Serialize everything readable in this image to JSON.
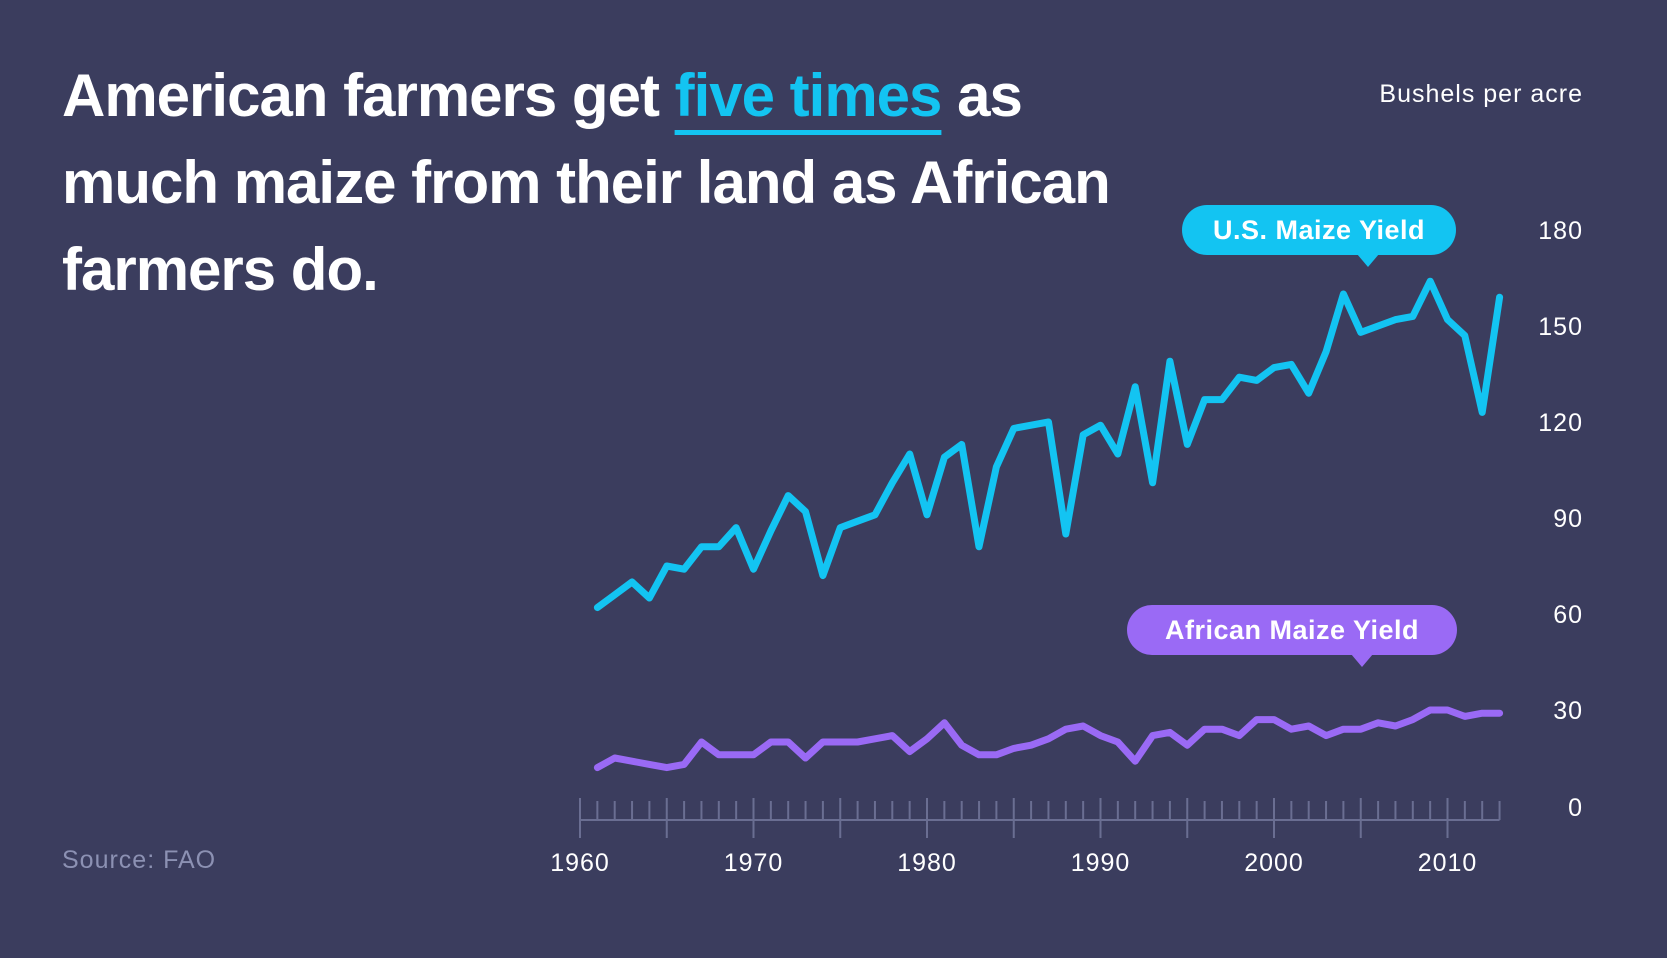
{
  "headline": {
    "before": "American farmers get ",
    "highlight": "five times",
    "after": " as much maize from their land as African farmers do."
  },
  "units_label": "Bushels per acre",
  "source": "Source: FAO",
  "colors": {
    "background": "#3b3d5e",
    "us": "#13c4f2",
    "africa": "#9a6af5",
    "axis": "#6a6e92"
  },
  "chart_data": {
    "type": "line",
    "title": "American farmers get five times as much maize from their land as African farmers do.",
    "ylabel": "Bushels per acre",
    "xlim": [
      1960,
      2013
    ],
    "ylim": [
      0,
      180
    ],
    "y_ticks": [
      0,
      30,
      60,
      90,
      120,
      150,
      180
    ],
    "x_tick_labels": [
      1960,
      1970,
      1980,
      1990,
      2000,
      2010
    ],
    "x": [
      1961,
      1962,
      1963,
      1964,
      1965,
      1966,
      1967,
      1968,
      1969,
      1970,
      1971,
      1972,
      1973,
      1974,
      1975,
      1976,
      1977,
      1978,
      1979,
      1980,
      1981,
      1982,
      1983,
      1984,
      1985,
      1986,
      1987,
      1988,
      1989,
      1990,
      1991,
      1992,
      1993,
      1994,
      1995,
      1996,
      1997,
      1998,
      1999,
      2000,
      2001,
      2002,
      2003,
      2004,
      2005,
      2006,
      2007,
      2008,
      2009,
      2010,
      2011,
      2012,
      2013
    ],
    "series": [
      {
        "name": "U.S. Maize Yield",
        "color": "#13c4f2",
        "values": [
          62,
          66,
          70,
          65,
          75,
          74,
          81,
          81,
          87,
          74,
          86,
          97,
          92,
          72,
          87,
          89,
          91,
          101,
          110,
          91,
          109,
          113,
          81,
          106,
          118,
          119,
          120,
          85,
          116,
          119,
          110,
          131,
          101,
          139,
          113,
          127,
          127,
          134,
          133,
          137,
          138,
          129,
          142,
          160,
          148,
          150,
          152,
          153,
          164,
          152,
          147,
          123,
          159
        ]
      },
      {
        "name": "African Maize Yield",
        "color": "#9a6af5",
        "values": [
          12,
          15,
          14,
          13,
          12,
          13,
          20,
          16,
          16,
          16,
          20,
          20,
          15,
          20,
          20,
          20,
          21,
          22,
          17,
          21,
          26,
          19,
          16,
          16,
          18,
          19,
          21,
          24,
          25,
          22,
          20,
          14,
          22,
          23,
          19,
          24,
          24,
          22,
          27,
          27,
          24,
          25,
          22,
          24,
          24,
          26,
          25,
          27,
          30,
          30,
          28,
          29,
          29
        ]
      }
    ],
    "annotations": [
      "U.S. Maize Yield",
      "African Maize Yield"
    ],
    "legend": "inline-callouts"
  }
}
